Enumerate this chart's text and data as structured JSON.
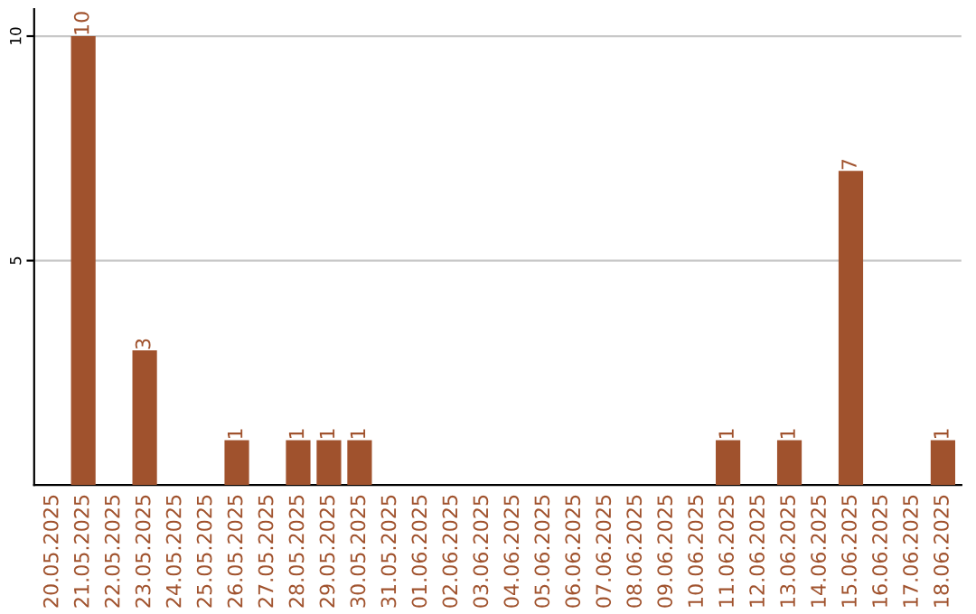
{
  "chart_data": {
    "type": "bar",
    "categories": [
      "20.05.2025",
      "21.05.2025",
      "22.05.2025",
      "23.05.2025",
      "24.05.2025",
      "25.05.2025",
      "26.05.2025",
      "27.05.2025",
      "28.05.2025",
      "29.05.2025",
      "30.05.2025",
      "31.05.2025",
      "01.06.2025",
      "02.06.2025",
      "03.06.2025",
      "04.06.2025",
      "05.06.2025",
      "06.06.2025",
      "07.06.2025",
      "08.06.2025",
      "09.06.2025",
      "10.06.2025",
      "11.06.2025",
      "12.06.2025",
      "13.06.2025",
      "14.06.2025",
      "15.06.2025",
      "16.06.2025",
      "17.06.2025",
      "18.06.2025"
    ],
    "values": [
      0,
      10,
      0,
      3,
      0,
      0,
      1,
      0,
      1,
      1,
      1,
      0,
      0,
      0,
      0,
      0,
      0,
      0,
      0,
      0,
      0,
      0,
      1,
      0,
      1,
      0,
      7,
      0,
      0,
      1
    ],
    "value_labels": [
      null,
      "10",
      null,
      "3",
      null,
      null,
      "1",
      null,
      "1",
      "1",
      "1",
      null,
      null,
      null,
      null,
      null,
      null,
      null,
      null,
      null,
      null,
      null,
      "1",
      null,
      "1",
      null,
      "7",
      null,
      null,
      "1"
    ],
    "color": "#a0522d",
    "ylim": [
      0,
      10.6
    ],
    "yticks": [
      5,
      10
    ],
    "grid": "y",
    "legend": false
  }
}
